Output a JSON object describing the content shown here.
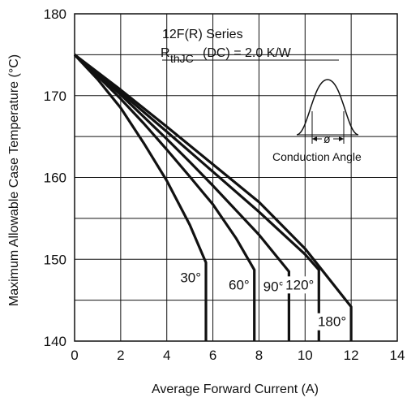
{
  "chart_data": {
    "type": "line",
    "xlabel": "Average Forward Current (A)",
    "ylabel": "Maximum Allowable Case Temperature (°C)",
    "xlim": [
      0,
      14
    ],
    "ylim": [
      140,
      180
    ],
    "xticks": [
      0,
      2,
      4,
      6,
      8,
      10,
      12,
      14
    ],
    "yticks": [
      140,
      150,
      160,
      170,
      180
    ],
    "grid": true,
    "annotation": {
      "series_title": "12F(R) Series",
      "rth_symbol": "R",
      "rth_subscript": "thJC",
      "rth_rest": " (DC) = 2.0 K/W",
      "phi": "ø",
      "inset_label": "Conduction Angle"
    },
    "series": [
      {
        "name": "30°",
        "x": [
          0,
          1,
          2,
          3,
          4,
          5,
          5.7
        ],
        "y": [
          175,
          172,
          168.5,
          164.2,
          159.6,
          154.2,
          149.6
        ],
        "drop_to": 140
      },
      {
        "name": "60°",
        "x": [
          0,
          1,
          2,
          3,
          4,
          5,
          6,
          7,
          7.8
        ],
        "y": [
          175,
          172.4,
          169.6,
          166.6,
          163.4,
          160.1,
          156.7,
          152.6,
          148.7
        ],
        "drop_to": 140
      },
      {
        "name": "90°",
        "x": [
          0,
          1,
          2,
          3,
          4,
          5,
          6,
          7,
          8,
          9.3
        ],
        "y": [
          175,
          172.6,
          170.1,
          167.4,
          164.7,
          161.9,
          159.0,
          156.0,
          153.0,
          148.5
        ],
        "drop_to": 140
      },
      {
        "name": "120°",
        "x": [
          0,
          2,
          4,
          6,
          8,
          10,
          10.6
        ],
        "y": [
          175,
          170.4,
          165.6,
          160.7,
          155.8,
          150.6,
          148.7
        ],
        "drop_to": 140
      },
      {
        "name": "180°",
        "x": [
          0,
          2,
          4,
          6,
          8,
          10,
          12
        ],
        "y": [
          175,
          170.7,
          166.2,
          161.6,
          157.0,
          151.3,
          144.2
        ],
        "drop_to": 140
      }
    ]
  }
}
